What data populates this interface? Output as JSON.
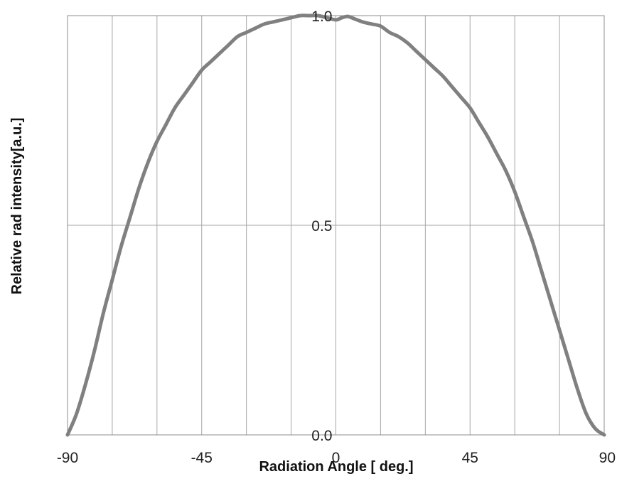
{
  "chart_data": {
    "type": "line",
    "title": "",
    "xlabel": "Radiation Angle  [ deg.]",
    "ylabel": "Relative rad intensity[a.u.]",
    "xlim": [
      -90,
      90
    ],
    "ylim": [
      0,
      1.0
    ],
    "x_ticks": [
      {
        "value": -90,
        "label": "-90"
      },
      {
        "value": -45,
        "label": "-45"
      },
      {
        "value": 0,
        "label": "0"
      },
      {
        "value": 45,
        "label": "45"
      },
      {
        "value": 90,
        "label": "90"
      }
    ],
    "y_ticks": [
      {
        "value": 0.0,
        "label": "0.0"
      },
      {
        "value": 0.5,
        "label": "0.5"
      },
      {
        "value": 1.0,
        "label": "1.0"
      }
    ],
    "x_gridlines": [
      -75,
      -60,
      -45,
      -30,
      -15,
      0,
      15,
      30,
      45,
      60,
      75
    ],
    "y_gridlines": [
      0.5
    ],
    "grid": true,
    "legend": "none",
    "line_color": "#808080",
    "grid_color": "#a6a6a6",
    "series": [
      {
        "x": [
          -90,
          -87,
          -84,
          -81,
          -78,
          -75,
          -72,
          -69,
          -66,
          -63,
          -60,
          -57,
          -54,
          -51,
          -48,
          -45,
          -42,
          -39,
          -36,
          -33,
          -30,
          -27,
          -24,
          -21,
          -18,
          -15,
          -12,
          -9,
          -6,
          -3,
          0,
          2,
          4,
          6,
          9,
          12,
          15,
          18,
          21,
          24,
          27,
          30,
          33,
          36,
          39,
          42,
          45,
          48,
          51,
          54,
          57,
          60,
          63,
          66,
          69,
          72,
          75,
          78,
          81,
          84,
          87,
          90
        ],
        "y": [
          0.0,
          0.05,
          0.12,
          0.2,
          0.29,
          0.37,
          0.45,
          0.52,
          0.59,
          0.65,
          0.7,
          0.74,
          0.78,
          0.81,
          0.84,
          0.87,
          0.89,
          0.91,
          0.93,
          0.95,
          0.96,
          0.97,
          0.98,
          0.985,
          0.99,
          0.995,
          1.0,
          1.0,
          1.0,
          0.995,
          0.99,
          0.995,
          0.998,
          0.993,
          0.985,
          0.98,
          0.975,
          0.96,
          0.95,
          0.935,
          0.915,
          0.895,
          0.875,
          0.855,
          0.83,
          0.805,
          0.78,
          0.745,
          0.71,
          0.67,
          0.63,
          0.58,
          0.52,
          0.46,
          0.39,
          0.32,
          0.25,
          0.18,
          0.11,
          0.05,
          0.015,
          0.0
        ]
      }
    ]
  }
}
